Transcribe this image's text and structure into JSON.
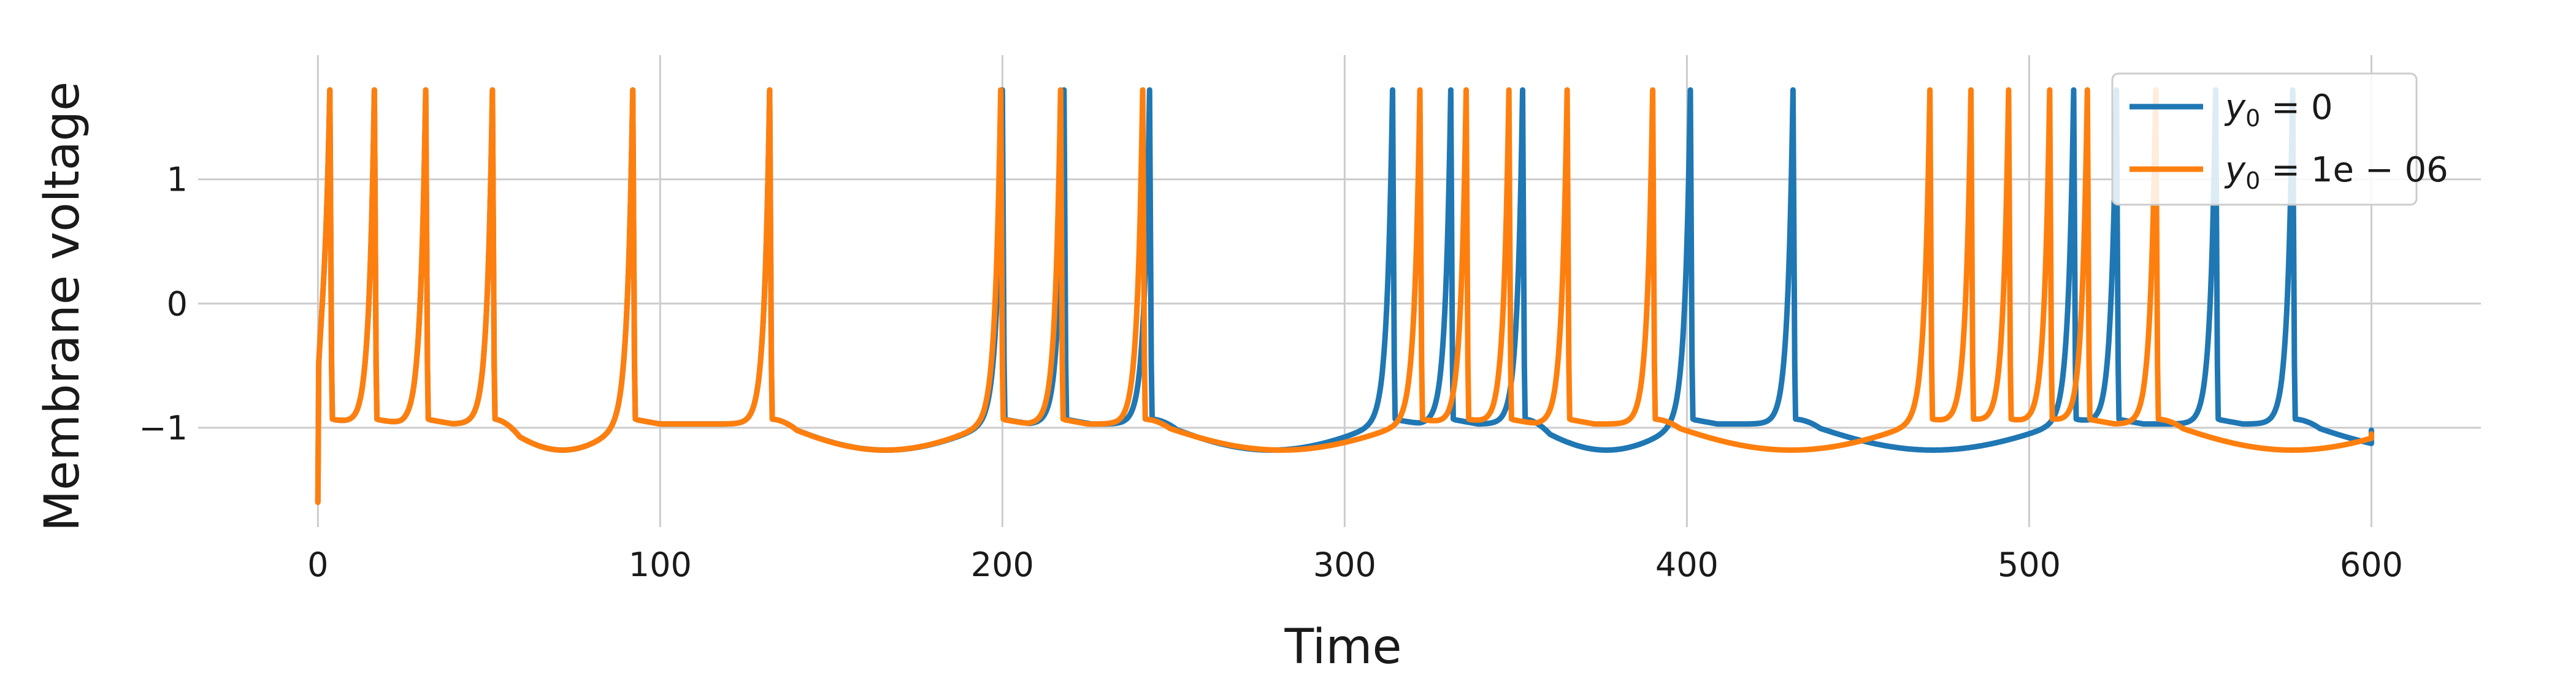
{
  "chart_data": {
    "type": "line",
    "title": "",
    "xlabel": "Time",
    "ylabel": "Membrane voltage",
    "xlim": [
      -35,
      632
    ],
    "ylim": [
      -1.8,
      2.0
    ],
    "x_ticks": [
      0,
      100,
      200,
      300,
      400,
      500,
      600
    ],
    "x_tick_labels": [
      "0",
      "100",
      "200",
      "300",
      "400",
      "500",
      "600"
    ],
    "y_ticks": [
      -1,
      0,
      1
    ],
    "y_tick_labels": [
      "−1",
      "0",
      "1"
    ],
    "grid": true,
    "legend_position": "top-right",
    "series": [
      {
        "name": "y0 = 0",
        "color": "#1f77b4",
        "initial_value": -1.6,
        "spike_times": [
          3.5,
          16.5,
          31.5,
          51.0,
          92.0,
          132.0,
          200.0,
          218.0,
          243.0,
          314.0,
          331.0,
          352.0,
          401.0,
          431.0,
          513.0,
          525.5,
          554.5,
          577.0
        ],
        "end_value": -1.02
      },
      {
        "name": "y0 = 1e − 06",
        "color": "#ff7f0e",
        "initial_value": -1.6,
        "spike_times": [
          3.5,
          16.5,
          31.5,
          51.0,
          92.0,
          132.0,
          199.5,
          217.0,
          241.0,
          322.0,
          335.5,
          348.0,
          365.0,
          390.0,
          471.0,
          483.0,
          494.0,
          506.0,
          517.0,
          537.0
        ],
        "end_value": -1.05
      }
    ]
  },
  "legend": {
    "entries": [
      {
        "base": "y",
        "sub": "0",
        "rest": " = 0"
      },
      {
        "base": "y",
        "sub": "0",
        "rest": " = 1e − 06"
      }
    ]
  }
}
